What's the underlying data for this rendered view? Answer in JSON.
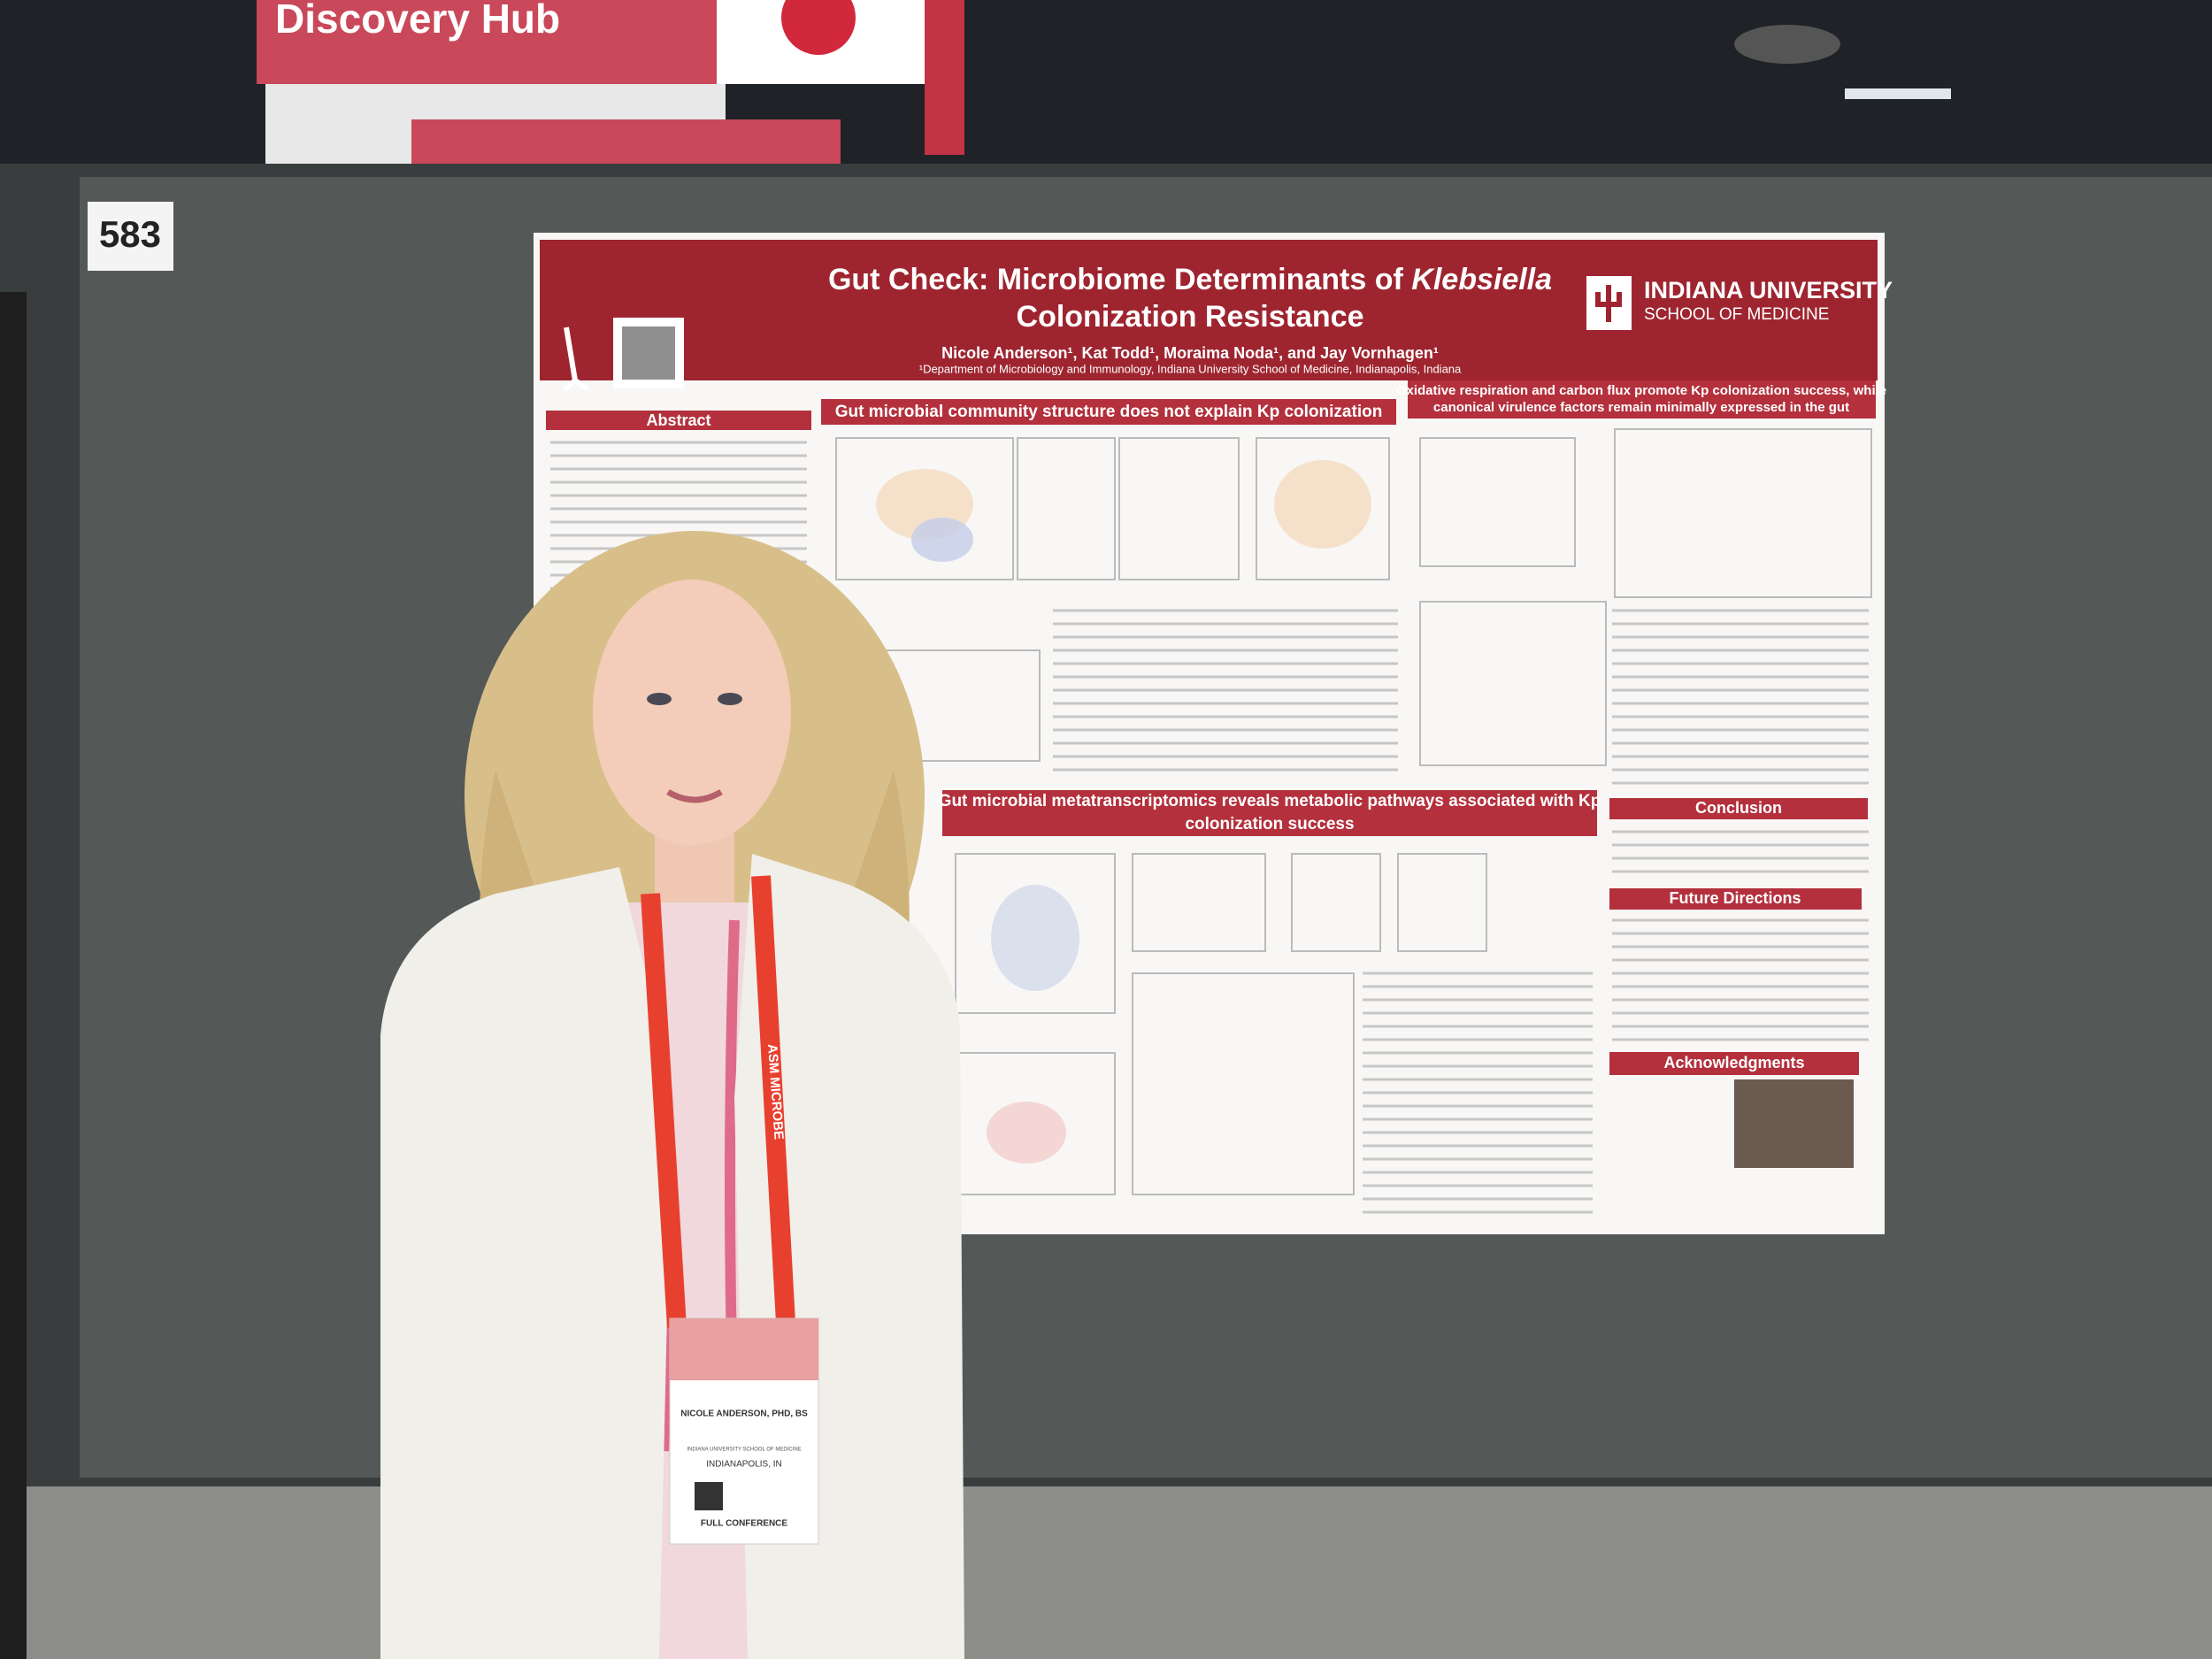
{
  "booth_sign": {
    "text": "Discovery Hub"
  },
  "board_number": "583",
  "poster": {
    "title_line1": "Gut Check: Microbiome Determinants of ",
    "title_italic": "Klebsiella",
    "title_line2": "Colonization Resistance",
    "authors": "Nicole Anderson¹, Kat Todd¹, Moraima Noda¹, and Jay Vornhagen¹",
    "affiliation": "¹Department of Microbiology and Immunology, Indiana University School of Medicine, Indianapolis, Indiana",
    "institution": "INDIANA UNIVERSITY",
    "school": "SCHOOL OF MEDICINE",
    "sections": {
      "abstract": "Abstract",
      "community": "Gut microbial community structure does not explain Kp colonization",
      "oxidative_line1": "Oxidative respiration and carbon flux promote Kp colonization success, while",
      "oxidative_line2": "canonical virulence factors remain minimally expressed in the gut",
      "metatranscriptomics_line1": "Gut microbial metatranscriptomics reveals metabolic pathways associated with Kp",
      "metatranscriptomics_line2": "colonization success",
      "conclusion": "Conclusion",
      "future": "Future Directions",
      "acknowledgments": "Acknowledgments"
    }
  },
  "badge": {
    "name": "NICOLE ANDERSON, PHD, BS",
    "organization": "INDIANA UNIVERSITY SCHOOL OF MEDICINE",
    "location": "INDIANAPOLIS, IN",
    "type": "FULL CONFERENCE"
  },
  "lanyard": "ASM MICROBE"
}
